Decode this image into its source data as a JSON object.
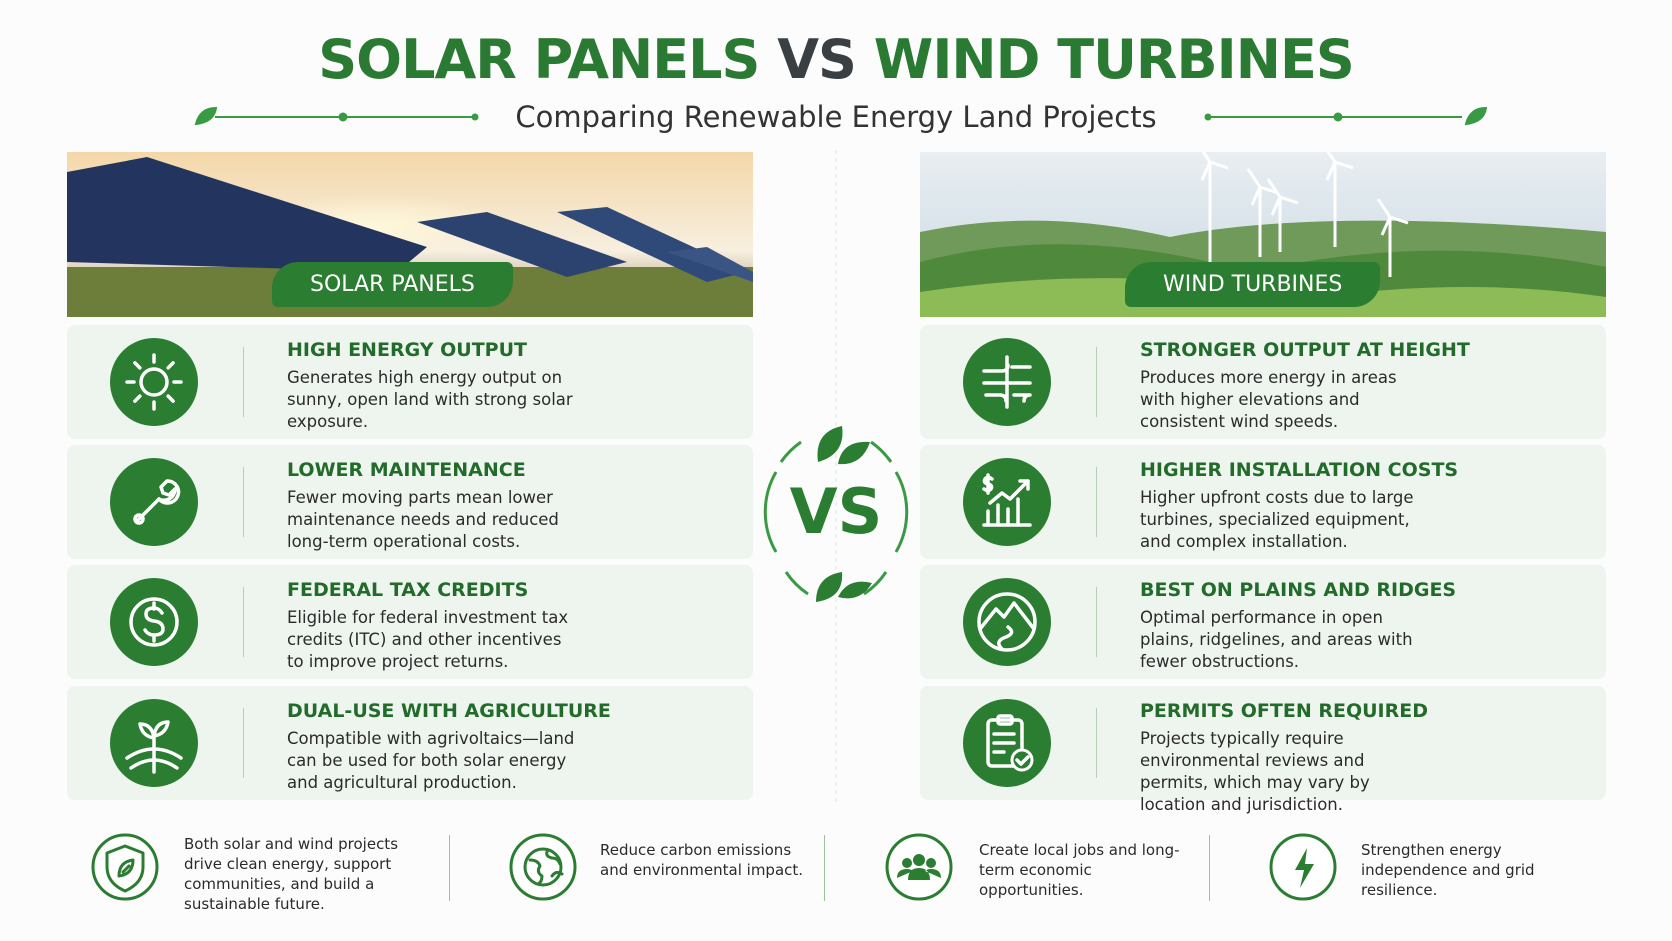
{
  "header": {
    "title_left": "SOLAR PANELS",
    "title_vs": "VS",
    "title_right": "WIND TURBINES",
    "subtitle": "Comparing Renewable Energy Land Projects"
  },
  "columns": [
    {
      "label": "SOLAR PANELS",
      "items": [
        {
          "title": "HIGH ENERGY OUTPUT",
          "text": "Generates high energy output on sunny, open land with strong solar exposure."
        },
        {
          "title": "LOWER MAINTENANCE",
          "text": "Fewer moving parts mean lower maintenance needs and reduced long-term operational costs."
        },
        {
          "title": "FEDERAL TAX CREDITS",
          "text": "Eligible for federal investment tax credits (ITC) and other incentives to improve project returns."
        },
        {
          "title": "DUAL-USE WITH AGRICULTURE",
          "text": "Compatible with agrivoltaics—land can be used for both solar energy and agricultural production."
        }
      ]
    },
    {
      "label": "WIND TURBINES",
      "items": [
        {
          "title": "STRONGER OUTPUT AT HEIGHT",
          "text": "Produces more energy in areas with higher elevations and consistent wind speeds."
        },
        {
          "title": "HIGHER INSTALLATION COSTS",
          "text": "Higher upfront costs due to large turbines, specialized equipment, and complex installation."
        },
        {
          "title": "BEST ON PLAINS AND RIDGES",
          "text": "Optimal performance in open plains, ridgelines, and areas with fewer obstructions."
        },
        {
          "title": "PERMITS OFTEN REQUIRED",
          "text": "Projects typically require environmental reviews and permits, which may vary by location and jurisdiction."
        }
      ]
    }
  ],
  "vs_badge": "VS",
  "footer": {
    "items": [
      "Both solar and wind projects drive clean energy, support communities, and build a sustainable future.",
      "Reduce carbon emissions and environmental impact.",
      "Create local jobs and long-term economic opportunities.",
      "Strengthen energy independence and grid resilience."
    ]
  }
}
